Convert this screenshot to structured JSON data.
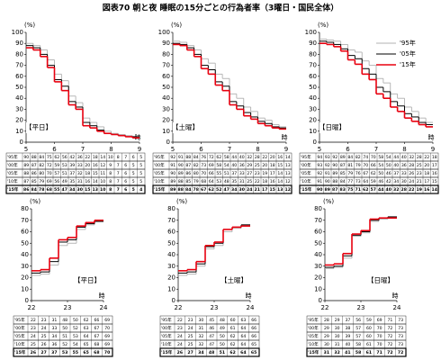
{
  "title": "図表70 朝と夜 睡眠の15分ごとの行為者率（3曜日・国民全体）",
  "chart_data": [
    {
      "type": "step",
      "panel_label": "【平日】",
      "label_position": "lower left",
      "y_label": "(%)",
      "x_label": "時",
      "xlim": [
        5,
        9
      ],
      "xticks": [
        5,
        6,
        7,
        8,
        9
      ],
      "ylim": [
        0,
        100
      ],
      "yticks": [
        0,
        10,
        20,
        30,
        40,
        50,
        60,
        70,
        80,
        90,
        100
      ],
      "legend": false,
      "series": [
        {
          "name": "'95年",
          "color": "#b0b0b0",
          "values": [
            90,
            88,
            84,
            75,
            62,
            56,
            42,
            36,
            22,
            18,
            14,
            10,
            8,
            7,
            6,
            5
          ]
        },
        {
          "name": "'00年",
          "color": null,
          "values": [
            89,
            87,
            82,
            72,
            59,
            53,
            39,
            33,
            20,
            16,
            12,
            9,
            7,
            6,
            5,
            5
          ]
        },
        {
          "name": "'05年",
          "color": "#000000",
          "values": [
            88,
            86,
            80,
            70,
            57,
            51,
            37,
            32,
            18,
            15,
            11,
            8,
            7,
            6,
            5,
            5
          ]
        },
        {
          "name": "'10年",
          "color": null,
          "values": [
            87,
            85,
            79,
            69,
            56,
            49,
            35,
            31,
            16,
            14,
            10,
            8,
            7,
            6,
            5,
            5
          ]
        },
        {
          "name": "'15年",
          "color": "#e8000f",
          "values": [
            86,
            84,
            78,
            68,
            55,
            47,
            34,
            30,
            15,
            13,
            10,
            8,
            7,
            6,
            5,
            4
          ]
        }
      ]
    },
    {
      "type": "step",
      "panel_label": "【土曜】",
      "label_position": "lower left",
      "y_label": "(%)",
      "x_label": "時",
      "xlim": [
        5,
        9
      ],
      "xticks": [
        5,
        6,
        7,
        8,
        9
      ],
      "ylim": [
        0,
        100
      ],
      "yticks": [
        0,
        10,
        20,
        30,
        40,
        50,
        60,
        70,
        80,
        90,
        100
      ],
      "legend": false,
      "series": [
        {
          "name": "'95年",
          "color": "#b0b0b0",
          "values": [
            92,
            91,
            88,
            84,
            76,
            72,
            62,
            58,
            44,
            40,
            32,
            28,
            22,
            20,
            16,
            14
          ]
        },
        {
          "name": "'00年",
          "color": null,
          "values": [
            91,
            90,
            87,
            82,
            73,
            69,
            58,
            54,
            40,
            36,
            29,
            25,
            20,
            18,
            15,
            13
          ]
        },
        {
          "name": "'05年",
          "color": "#000000",
          "values": [
            90,
            89,
            86,
            80,
            70,
            66,
            55,
            51,
            37,
            33,
            27,
            23,
            19,
            17,
            14,
            13
          ]
        },
        {
          "name": "'10年",
          "color": null,
          "values": [
            89,
            88,
            85,
            79,
            68,
            64,
            53,
            48,
            35,
            31,
            25,
            22,
            18,
            16,
            14,
            12
          ]
        },
        {
          "name": "'15年",
          "color": "#e8000f",
          "values": [
            89,
            88,
            84,
            78,
            67,
            62,
            52,
            47,
            34,
            30,
            24,
            21,
            17,
            15,
            13,
            12
          ]
        }
      ]
    },
    {
      "type": "step",
      "panel_label": "【日曜】",
      "label_position": "lower left",
      "y_label": "(%)",
      "x_label": "時",
      "xlim": [
        5,
        9
      ],
      "xticks": [
        5,
        6,
        7,
        8,
        9
      ],
      "ylim": [
        0,
        100
      ],
      "yticks": [
        0,
        10,
        20,
        30,
        40,
        50,
        60,
        70,
        80,
        90,
        100
      ],
      "legend": true,
      "series": [
        {
          "name": "'95年",
          "color": "#b0b0b0",
          "values": [
            94,
            93,
            92,
            89,
            84,
            82,
            74,
            70,
            58,
            54,
            44,
            40,
            32,
            28,
            22,
            18
          ]
        },
        {
          "name": "'00年",
          "color": null,
          "values": [
            93,
            92,
            90,
            87,
            81,
            79,
            70,
            66,
            54,
            50,
            40,
            36,
            28,
            25,
            20,
            17
          ]
        },
        {
          "name": "'05年",
          "color": "#000000",
          "values": [
            92,
            91,
            89,
            85,
            79,
            76,
            67,
            62,
            50,
            46,
            37,
            33,
            26,
            23,
            18,
            16
          ]
        },
        {
          "name": "'10年",
          "color": null,
          "values": [
            91,
            90,
            88,
            84,
            77,
            73,
            64,
            59,
            46,
            42,
            34,
            30,
            24,
            21,
            17,
            15
          ]
        },
        {
          "name": "'15年",
          "color": "#e8000f",
          "values": [
            90,
            89,
            87,
            83,
            75,
            71,
            62,
            57,
            44,
            40,
            32,
            28,
            22,
            19,
            16,
            14
          ]
        }
      ]
    },
    {
      "type": "step",
      "panel_label": "【平日】",
      "label_position": "right",
      "y_label": "(%)",
      "x_label": "時",
      "xlim": [
        22,
        24
      ],
      "xticks": [
        22,
        23,
        24
      ],
      "ylim": [
        0,
        80
      ],
      "yticks": [
        0,
        10,
        20,
        30,
        40,
        50,
        60,
        70,
        80
      ],
      "legend": false,
      "series": [
        {
          "name": "'95年",
          "color": "#b0b0b0",
          "values": [
            22,
            23,
            31,
            48,
            50,
            62,
            66,
            69
          ]
        },
        {
          "name": "'00年",
          "color": null,
          "values": [
            23,
            24,
            33,
            50,
            52,
            63,
            67,
            70
          ]
        },
        {
          "name": "'05年",
          "color": "#000000",
          "values": [
            24,
            25,
            34,
            51,
            53,
            64,
            67,
            69
          ]
        },
        {
          "name": "'10年",
          "color": null,
          "values": [
            25,
            26,
            36,
            52,
            54,
            65,
            68,
            69
          ]
        },
        {
          "name": "'15年",
          "color": "#e8000f",
          "values": [
            26,
            27,
            37,
            53,
            55,
            65,
            68,
            70
          ]
        }
      ]
    },
    {
      "type": "step",
      "panel_label": "【土曜】",
      "label_position": "right",
      "y_label": "(%)",
      "x_label": "時",
      "xlim": [
        22,
        24
      ],
      "xticks": [
        22,
        23,
        24
      ],
      "ylim": [
        0,
        80
      ],
      "yticks": [
        0,
        10,
        20,
        30,
        40,
        50,
        60,
        70,
        80
      ],
      "legend": false,
      "series": [
        {
          "name": "'95年",
          "color": "#b0b0b0",
          "values": [
            22,
            23,
            30,
            45,
            48,
            60,
            63,
            66
          ]
        },
        {
          "name": "'00年",
          "color": null,
          "values": [
            23,
            24,
            31,
            46,
            49,
            61,
            64,
            66
          ]
        },
        {
          "name": "'05年",
          "color": "#000000",
          "values": [
            24,
            25,
            32,
            47,
            50,
            62,
            64,
            66
          ]
        },
        {
          "name": "'10年",
          "color": null,
          "values": [
            24,
            25,
            32,
            47,
            50,
            62,
            64,
            65
          ]
        },
        {
          "name": "'15年",
          "color": "#e8000f",
          "values": [
            26,
            27,
            34,
            48,
            51,
            62,
            64,
            65
          ]
        }
      ]
    },
    {
      "type": "step",
      "panel_label": "【日曜】",
      "label_position": "right",
      "y_label": "(%)",
      "x_label": "時",
      "xlim": [
        22,
        24
      ],
      "xticks": [
        22,
        23,
        24
      ],
      "ylim": [
        0,
        80
      ],
      "yticks": [
        0,
        10,
        20,
        30,
        40,
        50,
        60,
        70,
        80
      ],
      "legend": false,
      "series": [
        {
          "name": "'95年",
          "color": "#b0b0b0",
          "values": [
            28,
            29,
            37,
            56,
            59,
            69,
            71,
            73
          ]
        },
        {
          "name": "'00年",
          "color": null,
          "values": [
            29,
            30,
            38,
            57,
            60,
            70,
            72,
            73
          ]
        },
        {
          "name": "'05年",
          "color": "#000000",
          "values": [
            29,
            30,
            39,
            57,
            60,
            70,
            72,
            73
          ]
        },
        {
          "name": "'10年",
          "color": null,
          "values": [
            30,
            31,
            40,
            58,
            61,
            70,
            72,
            73
          ]
        },
        {
          "name": "'15年",
          "color": "#e8000f",
          "values": [
            31,
            32,
            41,
            58,
            61,
            71,
            72,
            72
          ]
        }
      ]
    }
  ]
}
